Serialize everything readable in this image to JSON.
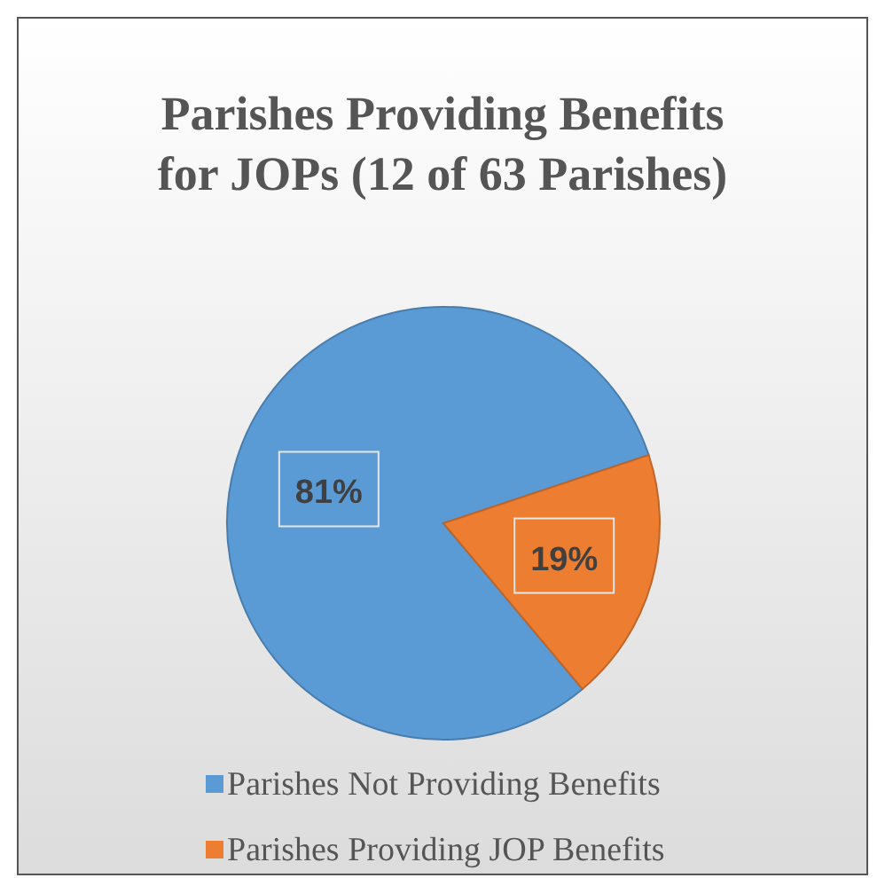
{
  "chart_data": {
    "type": "pie",
    "title": "Parishes Providing Benefits for JOPs (12 of 63 Parishes)",
    "categories": [
      "Parishes Not Providing Benefits",
      "Parishes Providing JOP Benefits"
    ],
    "values": [
      81,
      19
    ],
    "value_labels": [
      "81%",
      "19%"
    ],
    "colors": [
      "#5b9bd5",
      "#ed7d31"
    ],
    "legend": "bottom"
  }
}
